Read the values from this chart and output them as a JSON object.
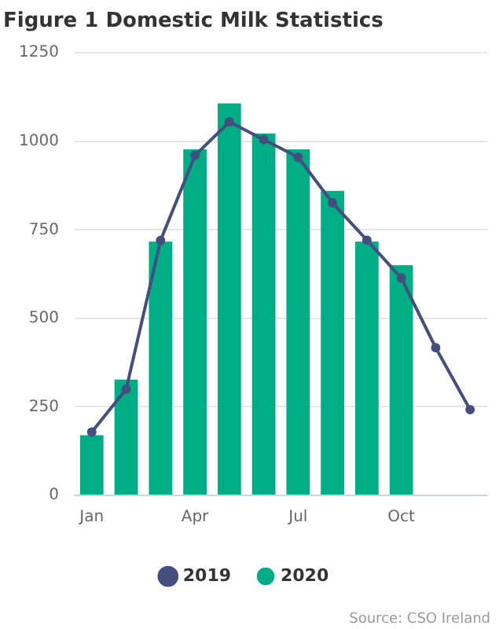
{
  "chart_data": {
    "type": "bar",
    "title": "Figure 1 Domestic Milk Statistics",
    "categories": [
      "Jan",
      null,
      null,
      "Apr",
      null,
      null,
      "Jul",
      null,
      null,
      "Oct",
      null,
      null
    ],
    "series": [
      {
        "name": "2019",
        "type": "line",
        "color": "#434f7e",
        "values": [
          179,
          300,
          720,
          960,
          1055,
          1005,
          955,
          826,
          721,
          614,
          417,
          242
        ]
      },
      {
        "name": "2020",
        "color": "#00ae85",
        "values": [
          170,
          327,
          717,
          977,
          1107,
          1022,
          977,
          860,
          717,
          650,
          null,
          null
        ]
      }
    ],
    "ylim": [
      0,
      1250
    ],
    "yticks": [
      0,
      250,
      500,
      750,
      1000,
      1250
    ],
    "grid": "y",
    "legend": "bottom",
    "marker": "circle",
    "annotations": [
      "Source: CSO Ireland"
    ]
  }
}
